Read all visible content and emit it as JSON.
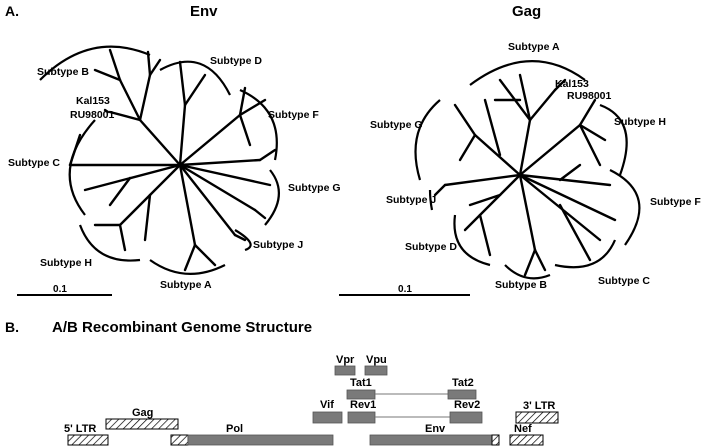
{
  "panel_a": {
    "label": "A.",
    "env": {
      "title": "Env",
      "subtypes": {
        "b": "Subtype B",
        "d": "Subtype D",
        "f": "Subtype F",
        "c": "Subtype C",
        "g": "Subtype G",
        "j": "Subtype J",
        "h": "Subtype H",
        "a": "Subtype A"
      },
      "isolates": [
        "Kal153",
        "RU98001"
      ],
      "scale": "0.1"
    },
    "gag": {
      "title": "Gag",
      "subtypes": {
        "a": "Subtype A",
        "g": "Subtype G",
        "h": "Subtype H",
        "j": "Subtype J",
        "f": "Subtype F",
        "d": "Subtype D",
        "b": "Subtype B",
        "c": "Subtype C"
      },
      "isolates": [
        "Kal153",
        "RU98001"
      ],
      "scale": "0.1"
    }
  },
  "panel_b": {
    "label": "B.",
    "title": "A/B Recombinant Genome Structure",
    "genes": {
      "vpr": "Vpr",
      "vpu": "Vpu",
      "tat1": "Tat1",
      "tat2": "Tat2",
      "vif": "Vif",
      "rev1": "Rev1",
      "rev2": "Rev2",
      "ltr3": "3' LTR",
      "ltr5": "5' LTR",
      "gag": "Gag",
      "pol": "Pol",
      "env": "Env",
      "nef": "Nef"
    }
  }
}
